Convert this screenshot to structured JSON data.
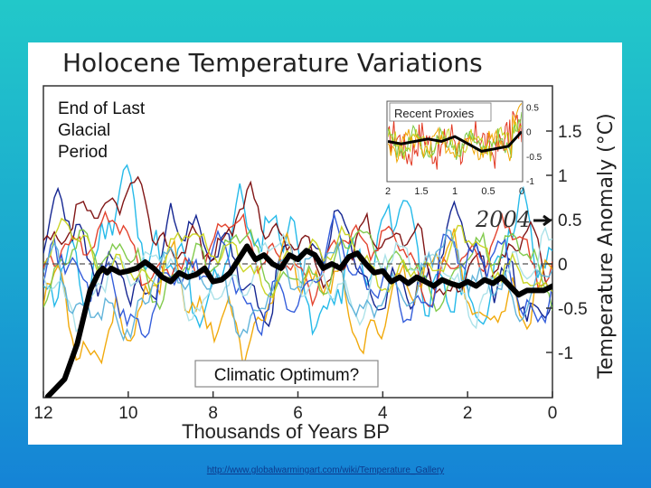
{
  "source_url": "http://www.globalwarmingart.com/wiki/Temperature_Gallery",
  "chart_data": {
    "type": "line",
    "title": "Holocene Temperature Variations",
    "xlabel": "Thousands of Years BP",
    "ylabel": "Temperature Anomaly (°C)",
    "xlim": [
      12,
      0
    ],
    "ylim": [
      -1.35,
      1.95
    ],
    "x_ticks": [
      "12",
      "10",
      "8",
      "6",
      "4",
      "2",
      "0"
    ],
    "y_ticks": [
      "1.5",
      "1",
      "0.5",
      "0",
      "-0.5",
      "-1"
    ],
    "grid": false,
    "reference_line": 0,
    "annotations": {
      "glacial": [
        "End of Last",
        "Glacial",
        "Period"
      ],
      "optimum": "Climatic Optimum?",
      "year": "2004"
    },
    "colors": {
      "average": "#000000",
      "proxies": [
        "#1ab6e8",
        "#0a1b8c",
        "#7a0a0a",
        "#e23a24",
        "#f0a500",
        "#7cc845",
        "#2a55d9",
        "#a8e0e8",
        "#c8d31a",
        "#5ab0d8"
      ]
    },
    "series": [
      {
        "x": [
          11.9,
          11.5,
          11.2,
          11.0,
          10.9,
          10.8,
          10.7,
          10.6,
          10.5,
          10.4,
          10.2,
          10.0,
          9.8,
          9.6,
          9.4,
          9.2,
          9.0,
          8.8,
          8.6,
          8.4,
          8.2,
          8.0,
          7.8,
          7.6,
          7.4,
          7.2,
          7.0,
          6.8,
          6.6,
          6.4,
          6.2,
          6.0,
          5.8,
          5.6,
          5.4,
          5.2,
          5.0,
          4.8,
          4.6,
          4.4,
          4.2,
          4.0,
          3.8,
          3.6,
          3.4,
          3.2,
          3.0,
          2.8,
          2.6,
          2.4,
          2.2,
          2.0,
          1.8,
          1.6,
          1.4,
          1.2,
          1.0,
          0.8,
          0.6,
          0.4,
          0.2,
          0.0
        ],
        "y": [
          -1.5,
          -1.3,
          -0.9,
          -0.5,
          -0.3,
          -0.2,
          -0.1,
          -0.05,
          -0.1,
          -0.05,
          -0.1,
          -0.08,
          -0.05,
          0.02,
          -0.05,
          -0.15,
          -0.2,
          -0.1,
          -0.15,
          -0.12,
          -0.05,
          -0.2,
          -0.18,
          -0.1,
          0.05,
          0.2,
          0.05,
          0.1,
          0.0,
          -0.05,
          0.1,
          0.05,
          0.15,
          0.1,
          -0.05,
          0.0,
          -0.05,
          0.08,
          0.12,
          0.0,
          -0.1,
          -0.08,
          -0.2,
          -0.15,
          -0.22,
          -0.15,
          -0.2,
          -0.25,
          -0.18,
          -0.22,
          -0.25,
          -0.2,
          -0.25,
          -0.18,
          -0.22,
          -0.15,
          -0.25,
          -0.35,
          -0.3,
          -0.3,
          -0.3,
          -0.25
        ]
      }
    ],
    "inset": {
      "title": "Recent Proxies",
      "x_ticks": [
        "2",
        "1.5",
        "1",
        "0.5",
        "0"
      ],
      "y_ticks": [
        "0.5",
        "0",
        "-0.5",
        "-1"
      ],
      "xlim": [
        2,
        0
      ],
      "ylim": [
        -1,
        0.6
      ],
      "series": [
        {
          "x": [
            2.0,
            1.8,
            1.6,
            1.4,
            1.2,
            1.0,
            0.8,
            0.6,
            0.4,
            0.2,
            0.0
          ],
          "y": [
            -0.2,
            -0.25,
            -0.2,
            -0.15,
            -0.2,
            -0.1,
            -0.25,
            -0.4,
            -0.35,
            -0.3,
            0.0
          ]
        }
      ]
    }
  }
}
